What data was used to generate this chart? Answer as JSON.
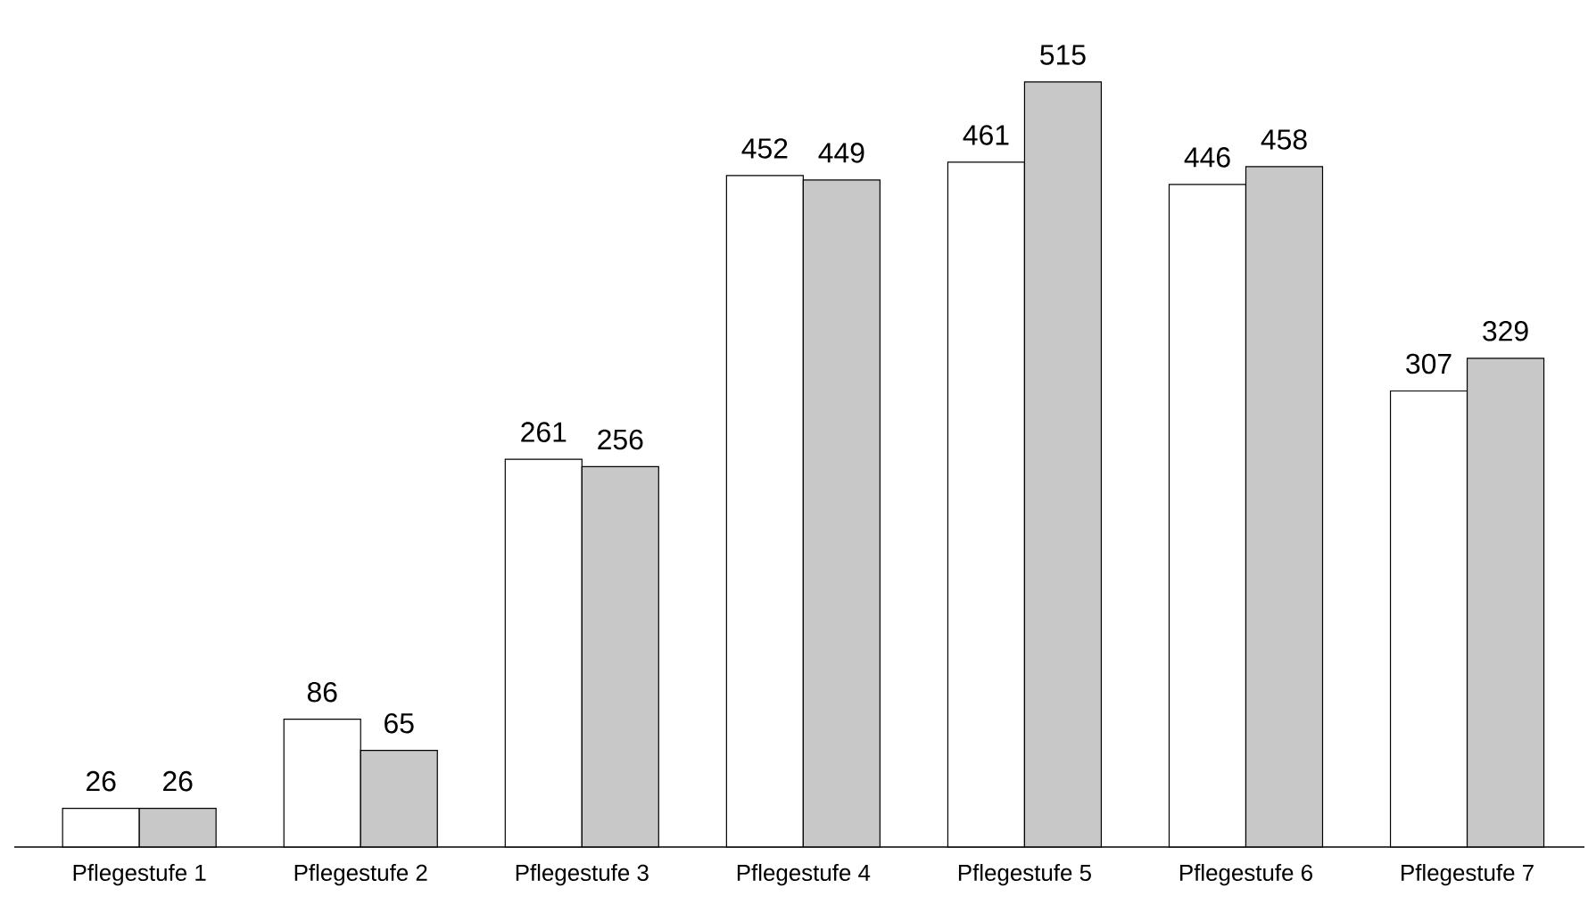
{
  "chart_data": {
    "type": "bar",
    "categories": [
      "Pflegestufe 1",
      "Pflegestufe 2",
      "Pflegestufe 3",
      "Pflegestufe 4",
      "Pflegestufe 5",
      "Pflegestufe 6",
      "Pflegestufe 7"
    ],
    "series": [
      {
        "color": "#ffffff",
        "values": [
          26,
          86,
          261,
          452,
          461,
          446,
          307
        ]
      },
      {
        "color": "#c8c8c8",
        "values": [
          26,
          65,
          256,
          449,
          515,
          458,
          329
        ]
      }
    ],
    "data_labels": true
  }
}
